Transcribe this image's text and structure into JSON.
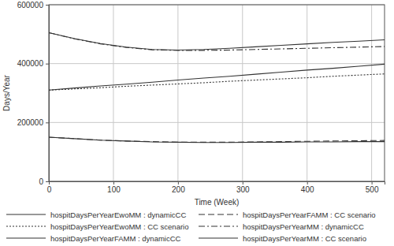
{
  "chart_data": {
    "type": "line",
    "x_label": "Time (Week)",
    "y_label": "Days/Year",
    "x": [
      0,
      40,
      80,
      120,
      160,
      200,
      240,
      280,
      320,
      360,
      400,
      440,
      480,
      520
    ],
    "xlim": [
      0,
      520
    ],
    "xticks": [
      0,
      100,
      200,
      300,
      400,
      500
    ],
    "ylim": [
      0,
      600000
    ],
    "yticks": [
      0,
      200000,
      400000,
      600000
    ],
    "grid": true,
    "legend": "bottom",
    "series": [
      {
        "name": "hospitDaysPerYearEwoMM : dynamicCC",
        "color": "#333333",
        "line_style": "solid",
        "values": [
          310000,
          317000,
          324000,
          330000,
          337000,
          344000,
          351000,
          357000,
          364000,
          371000,
          378000,
          384000,
          391000,
          398000
        ]
      },
      {
        "name": "hospitDaysPerYearEwoMM : CC scenario",
        "color": "#333333",
        "line_style": "dotted",
        "values": [
          310000,
          314000,
          318000,
          323000,
          327000,
          331000,
          335000,
          340000,
          344000,
          348000,
          352000,
          357000,
          361000,
          365000
        ]
      },
      {
        "name": "hospitDaysPerYearFAMM : dynamicCC",
        "color": "#333333",
        "line_style": "solid",
        "values": [
          150000,
          145000,
          140000,
          137000,
          134000,
          133000,
          132000,
          132000,
          133000,
          133000,
          134000,
          134000,
          135000,
          135000
        ]
      },
      {
        "name": "hospitDaysPerYearFAMM : CC scenario",
        "color": "#333333",
        "line_style": "dashed",
        "values": [
          150000,
          145000,
          140000,
          137000,
          135000,
          133000,
          133000,
          133000,
          134000,
          135000,
          136000,
          137000,
          138000,
          139000
        ]
      },
      {
        "name": "hospitDaysPerYearMM : dynamicCC",
        "color": "#333333",
        "line_style": "dashdot",
        "values": [
          505000,
          484000,
          467000,
          455000,
          447000,
          445000,
          445000,
          446000,
          448000,
          450000,
          452000,
          454000,
          456000,
          458000
        ]
      },
      {
        "name": "hospitDaysPerYearMM : CC scenario",
        "color": "#333333",
        "line_style": "solid",
        "values": [
          505000,
          485000,
          468000,
          456000,
          448000,
          446000,
          448000,
          452000,
          457000,
          462000,
          467000,
          472000,
          476000,
          481000
        ]
      }
    ]
  }
}
